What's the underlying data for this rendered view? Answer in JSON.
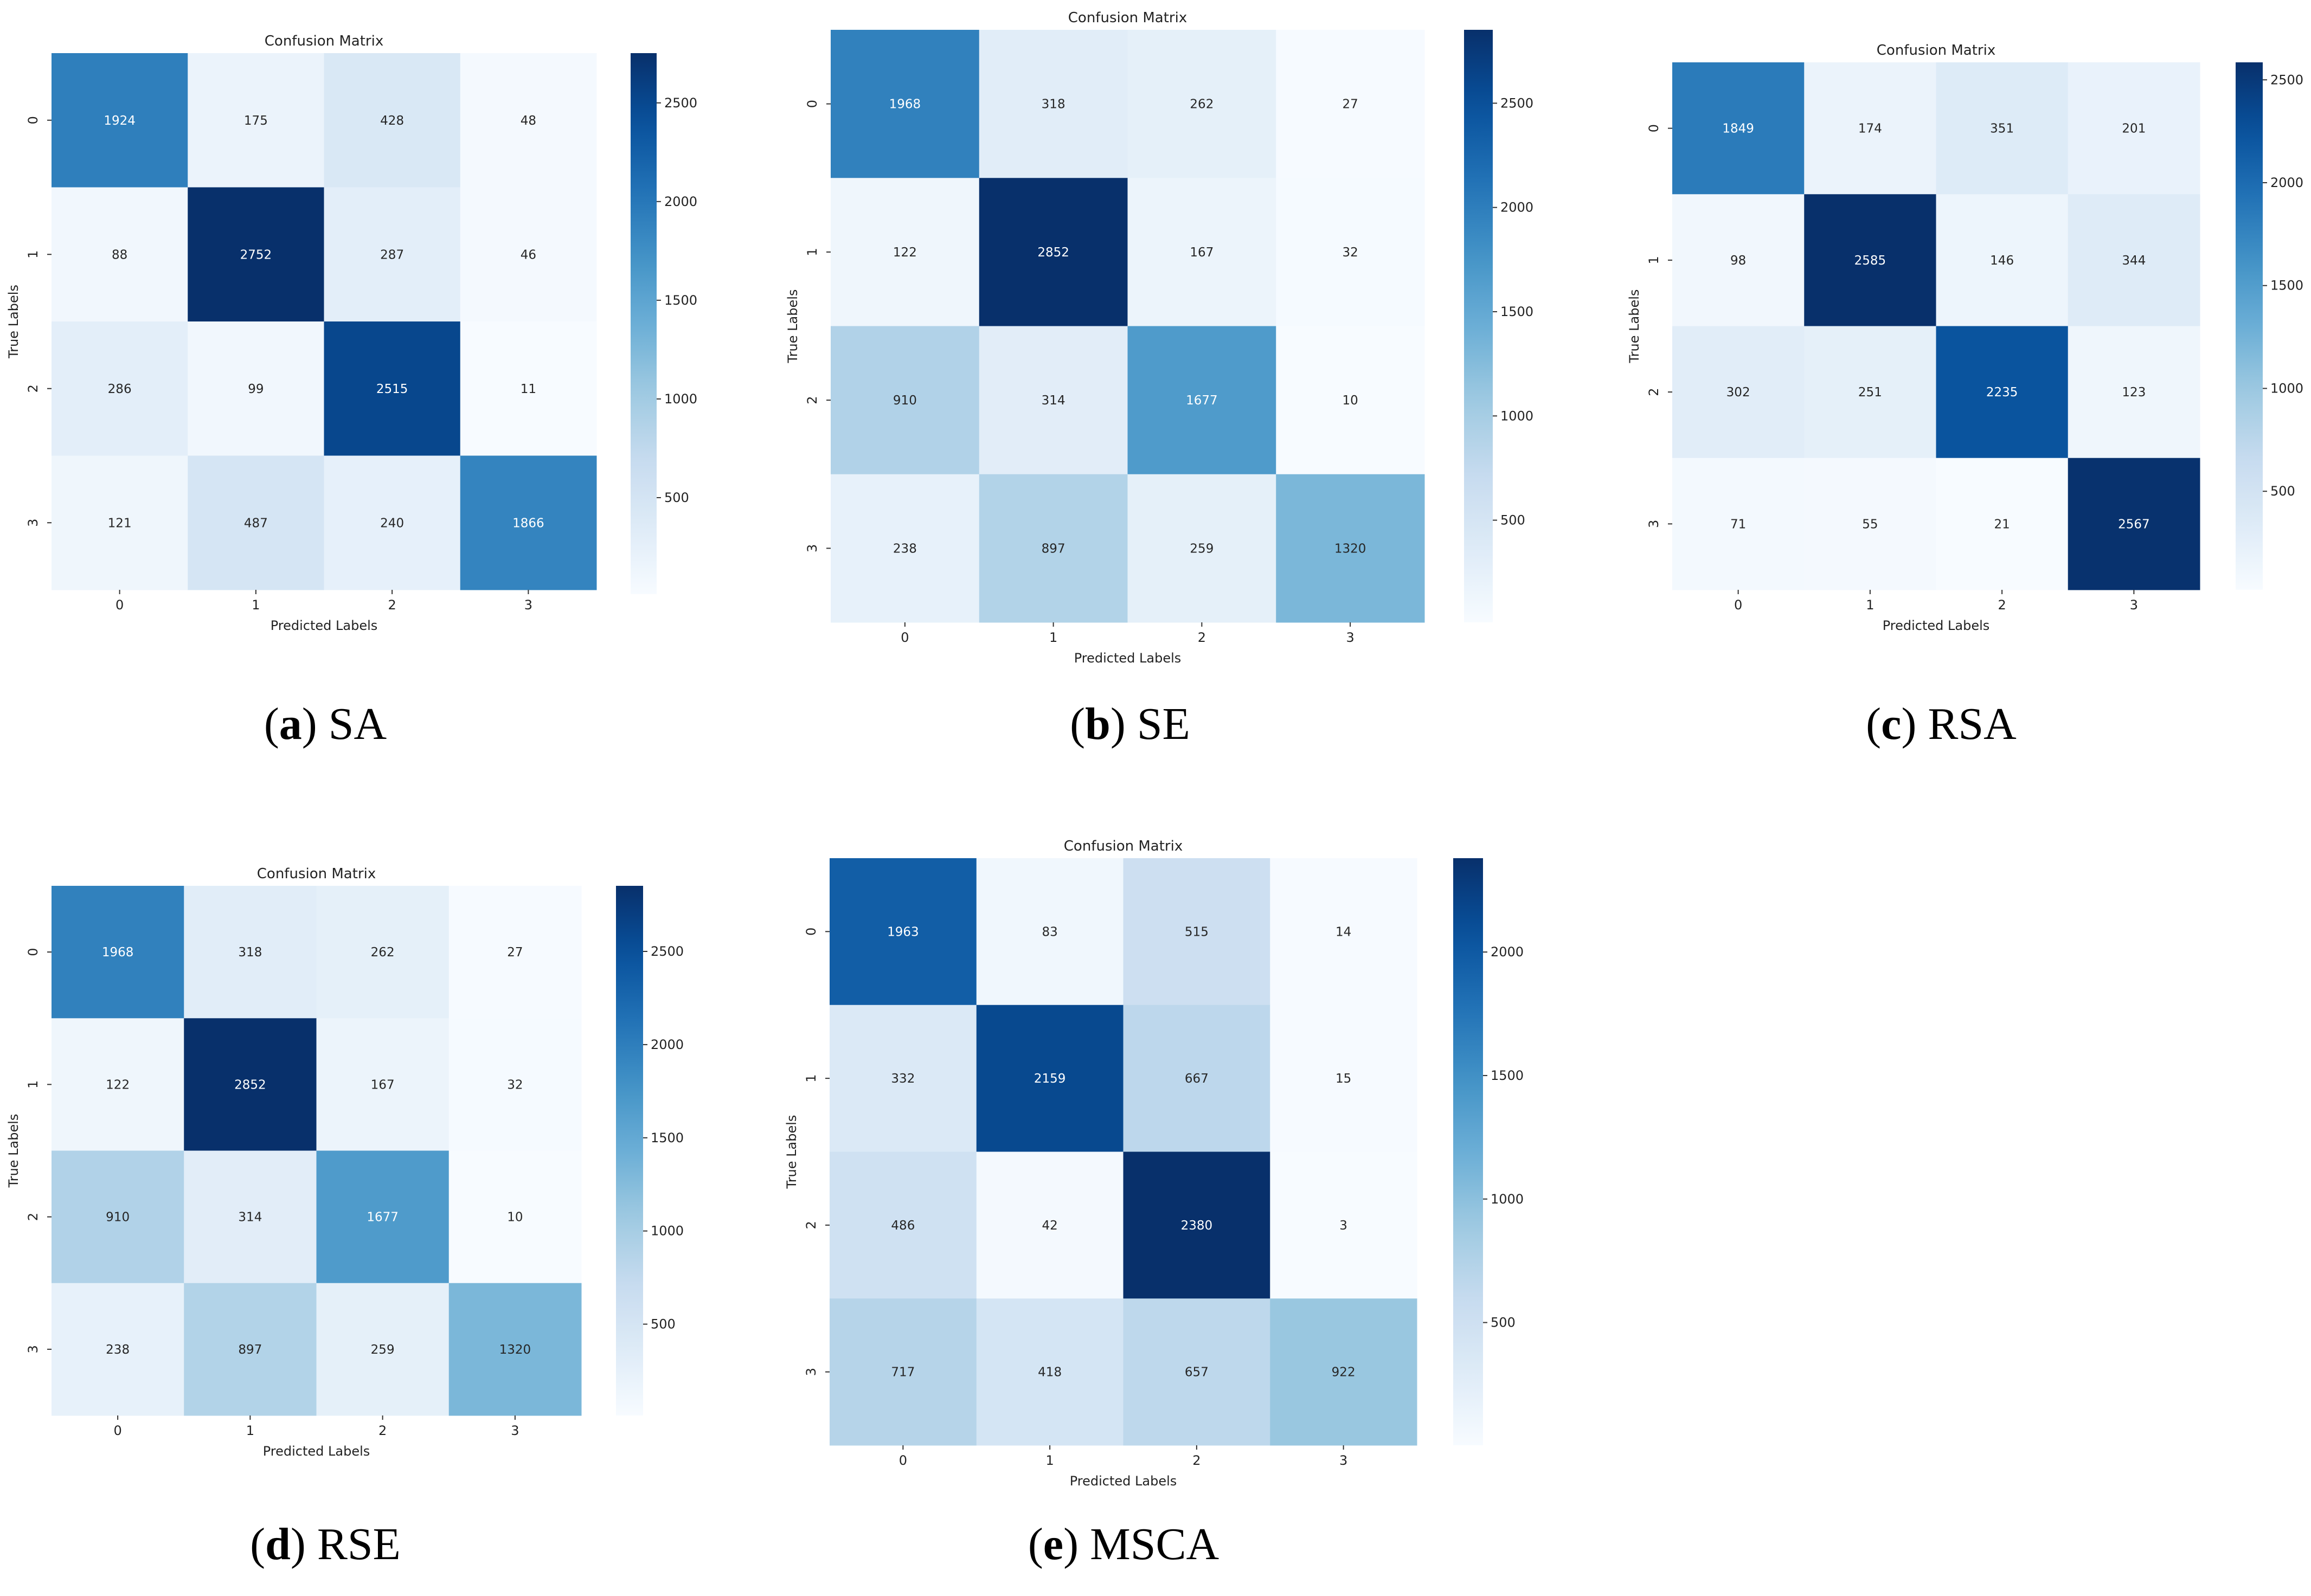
{
  "chart_data": [
    {
      "type": "heatmap",
      "title": "Confusion Matrix",
      "xlabel": "Predicted Labels",
      "ylabel": "True Labels",
      "x_tick_labels": [
        "0",
        "1",
        "2",
        "3"
      ],
      "y_tick_labels": [
        "0",
        "1",
        "2",
        "3"
      ],
      "values": [
        [
          1924,
          175,
          428,
          48
        ],
        [
          88,
          2752,
          287,
          46
        ],
        [
          286,
          99,
          2515,
          11
        ],
        [
          121,
          487,
          240,
          1866
        ]
      ],
      "colorbar_ticks": [
        500,
        1000,
        1500,
        2000,
        2500
      ],
      "colorbar_range": [
        11,
        2752
      ],
      "colormap": "Blues",
      "caption_letter": "a",
      "caption_text": "SA"
    },
    {
      "type": "heatmap",
      "title": "Confusion Matrix",
      "xlabel": "Predicted Labels",
      "ylabel": "True Labels",
      "x_tick_labels": [
        "0",
        "1",
        "2",
        "3"
      ],
      "y_tick_labels": [
        "0",
        "1",
        "2",
        "3"
      ],
      "values": [
        [
          1968,
          318,
          262,
          27
        ],
        [
          122,
          2852,
          167,
          32
        ],
        [
          910,
          314,
          1677,
          10
        ],
        [
          238,
          897,
          259,
          1320
        ]
      ],
      "colorbar_ticks": [
        500,
        1000,
        1500,
        2000,
        2500
      ],
      "colorbar_range": [
        10,
        2852
      ],
      "colormap": "Blues",
      "caption_letter": "b",
      "caption_text": "SE"
    },
    {
      "type": "heatmap",
      "title": "Confusion Matrix",
      "xlabel": "Predicted Labels",
      "ylabel": "True Labels",
      "x_tick_labels": [
        "0",
        "1",
        "2",
        "3"
      ],
      "y_tick_labels": [
        "0",
        "1",
        "2",
        "3"
      ],
      "values": [
        [
          1849,
          174,
          351,
          201
        ],
        [
          98,
          2585,
          146,
          344
        ],
        [
          302,
          251,
          2235,
          123
        ],
        [
          71,
          55,
          21,
          2567
        ]
      ],
      "colorbar_ticks": [
        500,
        1000,
        1500,
        2000,
        2500
      ],
      "colorbar_range": [
        21,
        2585
      ],
      "colormap": "Blues",
      "caption_letter": "c",
      "caption_text": "RSA"
    },
    {
      "type": "heatmap",
      "title": "Confusion Matrix",
      "xlabel": "Predicted Labels",
      "ylabel": "True Labels",
      "x_tick_labels": [
        "0",
        "1",
        "2",
        "3"
      ],
      "y_tick_labels": [
        "0",
        "1",
        "2",
        "3"
      ],
      "values": [
        [
          1968,
          318,
          262,
          27
        ],
        [
          122,
          2852,
          167,
          32
        ],
        [
          910,
          314,
          1677,
          10
        ],
        [
          238,
          897,
          259,
          1320
        ]
      ],
      "colorbar_ticks": [
        500,
        1000,
        1500,
        2000,
        2500
      ],
      "colorbar_range": [
        10,
        2852
      ],
      "colormap": "Blues",
      "caption_letter": "d",
      "caption_text": "RSE"
    },
    {
      "type": "heatmap",
      "title": "Confusion Matrix",
      "xlabel": "Predicted Labels",
      "ylabel": "True Labels",
      "x_tick_labels": [
        "0",
        "1",
        "2",
        "3"
      ],
      "y_tick_labels": [
        "0",
        "1",
        "2",
        "3"
      ],
      "values": [
        [
          1963,
          83,
          515,
          14
        ],
        [
          332,
          2159,
          667,
          15
        ],
        [
          486,
          42,
          2380,
          3
        ],
        [
          717,
          418,
          657,
          922
        ]
      ],
      "colorbar_ticks": [
        500,
        1000,
        1500,
        2000
      ],
      "colorbar_range": [
        3,
        2380
      ],
      "colormap": "Blues",
      "caption_letter": "e",
      "caption_text": "MSCA"
    }
  ]
}
